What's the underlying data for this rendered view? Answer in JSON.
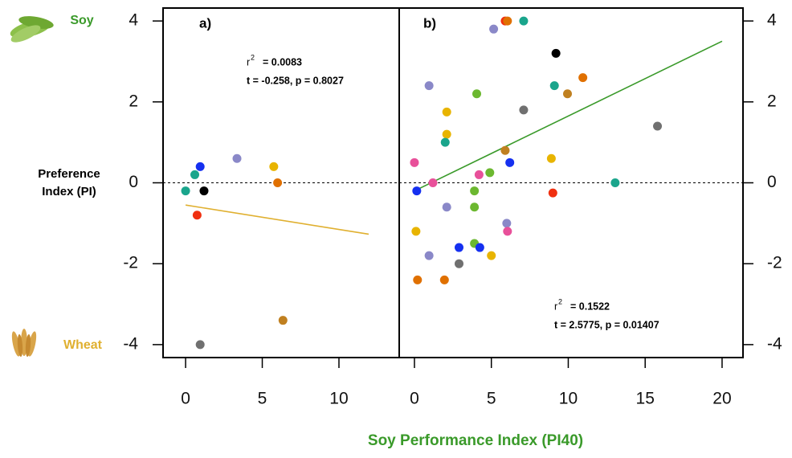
{
  "shared": {
    "ylabel_lines": [
      "Preference",
      "Index (PI)"
    ],
    "xlabel": "Soy Performance Index (PI40)",
    "top_label": "Soy",
    "bottom_label": "Wheat"
  },
  "chart_data": [
    {
      "type": "scatter",
      "panel_label": "a)",
      "xlim": [
        -1.47,
        13.93
      ],
      "ylim": [
        -4.32,
        4.32
      ],
      "xticks": [
        0,
        5,
        10
      ],
      "yticks": [
        -4,
        -2,
        0,
        2,
        4
      ],
      "hline": 0,
      "x": [
        0,
        0.6,
        0.95,
        1.2,
        3.35,
        5.75,
        6.0,
        0.75,
        6.35,
        0.95
      ],
      "y": [
        -0.2,
        0.2,
        0.4,
        -0.2,
        0.6,
        0.4,
        0,
        -0.8,
        -3.4,
        -4.0
      ],
      "colors": [
        "#1aa58c",
        "#1aa58c",
        "#1530f0",
        "#000000",
        "#8a88c8",
        "#e8b400",
        "#e07000",
        "#f03010",
        "#c08020",
        "#707070"
      ],
      "fit": {
        "x": [
          0,
          11.94
        ],
        "y": [
          -0.55,
          -1.27
        ],
        "color": "#e0b030"
      },
      "r_symbol": "r",
      "r_exponent": "2",
      "r2": "= 0.0083",
      "stats": "t = -0.258, p = 0.8027"
    },
    {
      "type": "scatter",
      "panel_label": "b)",
      "xlim": [
        -0.99,
        21.36
      ],
      "ylim": [
        -4.32,
        4.32
      ],
      "xticks": [
        0,
        5,
        10,
        15,
        20
      ],
      "yticks": [
        -4,
        -2,
        0,
        2,
        4
      ],
      "hline": 0,
      "x": [
        5.9,
        6.05,
        7.1,
        5.15,
        9.2,
        10.95,
        9.1,
        0.95,
        9.95,
        4.05,
        7.1,
        2.1,
        15.8,
        2.1,
        2.0,
        5.9,
        8.9,
        0,
        6.2,
        4.9,
        4.2,
        1.2,
        13.05,
        0.15,
        3.9,
        9.0,
        2.1,
        3.9,
        6.0,
        6.05,
        0.1,
        3.9,
        2.9,
        4.25,
        5.0,
        0.95,
        2.9,
        0.2,
        1.95
      ],
      "y": [
        4.0,
        4.0,
        4.0,
        3.8,
        3.2,
        2.6,
        2.4,
        2.4,
        2.2,
        2.2,
        1.8,
        1.75,
        1.4,
        1.2,
        1.0,
        0.8,
        0.6,
        0.5,
        0.5,
        0.25,
        0.2,
        0,
        0,
        -0.2,
        -0.2,
        -0.25,
        -0.6,
        -0.6,
        -1.0,
        -1.2,
        -1.2,
        -1.5,
        -1.6,
        -1.6,
        -1.8,
        -1.8,
        -2.0,
        -2.4,
        -2.4
      ],
      "colors": [
        "#f03010",
        "#e07000",
        "#1aa58c",
        "#8a88c8",
        "#000000",
        "#e07000",
        "#1aa58c",
        "#8a88c8",
        "#c08020",
        "#6cb830",
        "#707070",
        "#e8b400",
        "#707070",
        "#e8b400",
        "#1aa58c",
        "#c08020",
        "#e8b400",
        "#e8509a",
        "#1530f0",
        "#6cb830",
        "#e8509a",
        "#e8509a",
        "#1aa58c",
        "#1530f0",
        "#6cb830",
        "#f03010",
        "#8a88c8",
        "#6cb830",
        "#8a88c8",
        "#e8509a",
        "#e8b400",
        "#6cb830",
        "#1530f0",
        "#1530f0",
        "#e8b400",
        "#8a88c8",
        "#707070",
        "#e07000",
        "#e07000"
      ],
      "fit": {
        "x": [
          0,
          20
        ],
        "y": [
          -0.2,
          3.5
        ],
        "color": "#3a9a2a"
      },
      "r_symbol": "r",
      "r_exponent": "2",
      "r2": "= 0.1522",
      "stats": "t = 2.5775, p = 0.01407"
    }
  ]
}
